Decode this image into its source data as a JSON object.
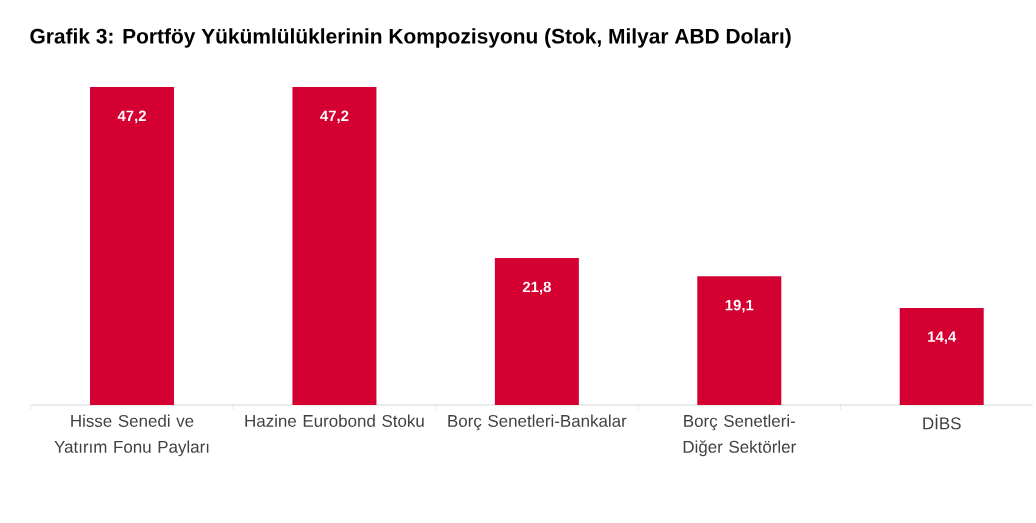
{
  "chart_data": {
    "type": "bar",
    "title": "Grafik 3: Portföy Yükümlülüklerinin Kompozisyonu (Stok, Milyar ABD Doları)",
    "categories": [
      "Hisse Senedi ve Yatırım Fonu Payları",
      "Hazine Eurobond Stoku",
      "Borç Senetleri-Bankalar",
      "Borç Senetleri-Diğer Sektörler",
      "DİBS"
    ],
    "values": [
      47.2,
      47.2,
      21.8,
      19.1,
      14.4
    ],
    "value_labels": [
      "47,2",
      "47,2",
      "21,8",
      "19,1",
      "14,4"
    ],
    "color": "#d50032"
  }
}
